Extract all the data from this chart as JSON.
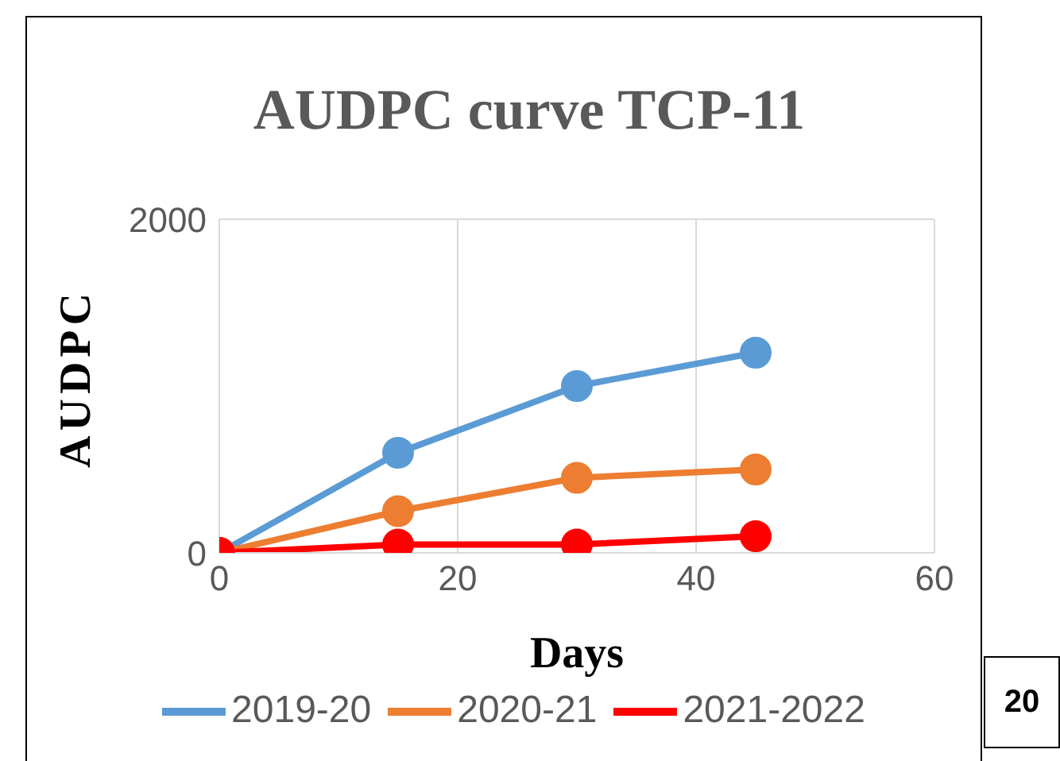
{
  "chart_data": {
    "type": "line",
    "title": "AUDPC curve TCP-11",
    "xlabel": "Days",
    "ylabel": "AUDPC",
    "x": [
      0,
      15,
      30,
      45
    ],
    "series": [
      {
        "name": "2019-20",
        "color": "#5b9bd5",
        "values": [
          0,
          600,
          1000,
          1200
        ]
      },
      {
        "name": "2020-21",
        "color": "#ed7d31",
        "values": [
          0,
          250,
          450,
          500
        ]
      },
      {
        "name": "2021-2022",
        "color": "#ff0000",
        "values": [
          0,
          50,
          50,
          100
        ]
      }
    ],
    "xlim": [
      0,
      60
    ],
    "xticks": [
      0,
      20,
      40,
      60
    ],
    "ylim": [
      0,
      2000
    ],
    "yticks": [
      0,
      2000
    ],
    "grid": true,
    "legend": "bottom",
    "marker": "circle",
    "line_style": "solid",
    "annotations": [
      "20"
    ]
  }
}
